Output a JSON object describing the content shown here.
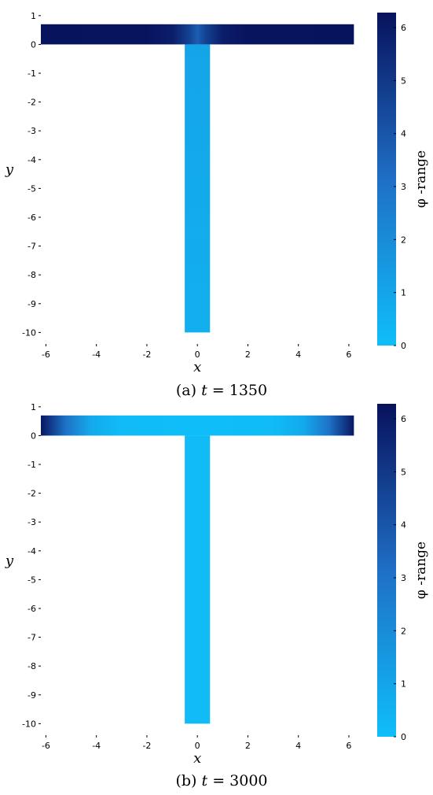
{
  "chart_data": [
    {
      "type": "heatmap",
      "caption_tag": "(a)",
      "caption_var": "t",
      "caption_eq": " = ",
      "caption_val": "1350",
      "xlabel": "x",
      "ylabel": "y",
      "xlim": [
        -6.2,
        6.5
      ],
      "ylim": [
        -10.4,
        1.05
      ],
      "xticks": [
        "-6",
        "-4",
        "-2",
        "0",
        "2",
        "4",
        "6"
      ],
      "yticks": [
        "1",
        "0",
        "-1",
        "-2",
        "-3",
        "-4",
        "-5",
        "-6",
        "-7",
        "-8",
        "-9",
        "-10"
      ],
      "colorbar": {
        "label": "φ -range",
        "min": 0,
        "max": 6.283,
        "ticks": [
          "0",
          "1",
          "2",
          "3",
          "4",
          "5",
          "6"
        ]
      },
      "geometry": {
        "horizontal_arm": {
          "x": [
            -6.2,
            6.2
          ],
          "y": [
            0,
            0.7
          ]
        },
        "vertical_arm": {
          "x": [
            -0.5,
            0.5
          ],
          "y": [
            -10,
            0
          ]
        }
      },
      "field": {
        "horizontal_arm_profile": [
          {
            "x": -6.2,
            "phi": 6.25
          },
          {
            "x": -2.0,
            "phi": 6.2
          },
          {
            "x": -1.0,
            "phi": 5.9
          },
          {
            "x": -0.3,
            "phi": 4.6
          },
          {
            "x": 0.0,
            "phi": 3.7
          },
          {
            "x": 0.3,
            "phi": 4.6
          },
          {
            "x": 1.0,
            "phi": 5.9
          },
          {
            "x": 2.0,
            "phi": 6.2
          },
          {
            "x": 6.2,
            "phi": 6.25
          }
        ],
        "vertical_arm_phi": [
          {
            "y": 0,
            "phi": 1.0
          },
          {
            "y": -10,
            "phi": 0.6
          }
        ]
      }
    },
    {
      "type": "heatmap",
      "caption_tag": "(b)",
      "caption_var": "t",
      "caption_eq": " = ",
      "caption_val": "3000",
      "xlabel": "x",
      "ylabel": "y",
      "xlim": [
        -6.2,
        6.5
      ],
      "ylim": [
        -10.4,
        1.05
      ],
      "xticks": [
        "-6",
        "-4",
        "-2",
        "0",
        "2",
        "4",
        "6"
      ],
      "yticks": [
        "1",
        "0",
        "-1",
        "-2",
        "-3",
        "-4",
        "-5",
        "-6",
        "-7",
        "-8",
        "-9",
        "-10"
      ],
      "colorbar": {
        "label": "φ -range",
        "min": 0,
        "max": 6.283,
        "ticks": [
          "0",
          "1",
          "2",
          "3",
          "4",
          "5",
          "6"
        ]
      },
      "geometry": {
        "horizontal_arm": {
          "x": [
            -6.2,
            6.2
          ],
          "y": [
            0,
            0.7
          ]
        },
        "vertical_arm": {
          "x": [
            -0.5,
            0.5
          ],
          "y": [
            -10,
            0
          ]
        }
      },
      "field": {
        "horizontal_arm_profile": [
          {
            "x": -6.2,
            "phi": 6.1
          },
          {
            "x": -5.2,
            "phi": 3.0
          },
          {
            "x": -4.2,
            "phi": 0.8
          },
          {
            "x": -3.0,
            "phi": 0.1
          },
          {
            "x": 0.0,
            "phi": 0.0
          },
          {
            "x": 3.0,
            "phi": 0.1
          },
          {
            "x": 4.2,
            "phi": 0.8
          },
          {
            "x": 5.2,
            "phi": 3.0
          },
          {
            "x": 6.2,
            "phi": 6.1
          }
        ],
        "vertical_arm_phi": [
          {
            "y": 0,
            "phi": 0.1
          },
          {
            "y": -10,
            "phi": 0.1
          }
        ]
      }
    }
  ],
  "colormap": {
    "low": "#0fbef8",
    "mid": "#1f6fc6",
    "high": "#08125c"
  }
}
